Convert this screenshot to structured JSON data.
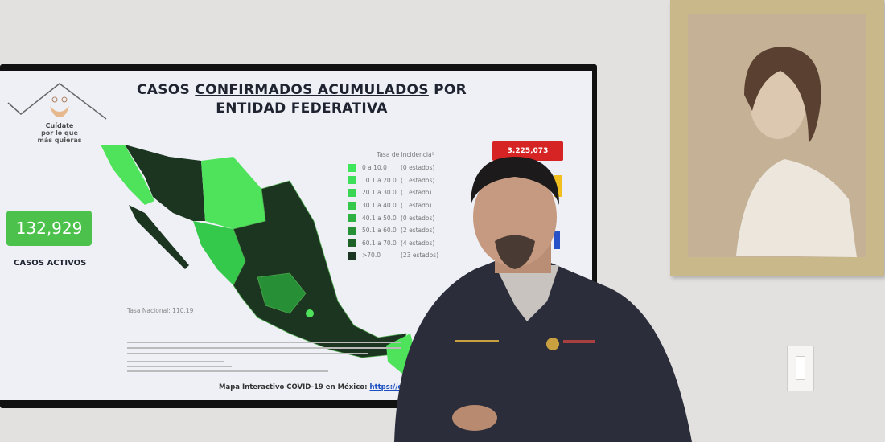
{
  "slide": {
    "title_line1_prefix": "CASOS ",
    "title_line1_underlined": "CONFIRMADOS ACUMULADOS",
    "title_line1_suffix": " POR",
    "title_line2": "ENTIDAD FEDERATIVA",
    "logo_text": [
      "Cuídate",
      "por lo que",
      "más quieras"
    ],
    "active_cases_value": "132,929",
    "active_cases_label": "CASOS ACTIVOS",
    "total_confirmed": "3.225,073",
    "national_rate": "Tasa Nacional: 110.19",
    "legend": {
      "title": "Tasa de incidencia¹",
      "items": [
        {
          "range": "0  a 10.0",
          "count": "(0 estados)",
          "color": "#3ee65a"
        },
        {
          "range": "10.1 a 20.0",
          "count": "(1 estados)",
          "color": "#3ee05a"
        },
        {
          "range": "20.1 a 30.0",
          "count": "(1 estado)",
          "color": "#3ad553"
        },
        {
          "range": "30.1 a 40.0",
          "count": "(1 estado)",
          "color": "#35c94c"
        },
        {
          "range": "40.1 a 50.0",
          "count": "(0 estados)",
          "color": "#2fb043"
        },
        {
          "range": "50.1 a 60.0",
          "count": "(2 estados)",
          "color": "#278f36"
        },
        {
          "range": "60.1 a 70.0",
          "count": "(4 estados)",
          "color": "#1e6228"
        },
        {
          "range": ">70.0",
          "count": "(23 estados)",
          "color": "#1c3520"
        }
      ]
    },
    "footer_label": "Mapa Interactivo COVID-19 en México:",
    "footer_link": "https://covid19..."
  },
  "colors": {
    "wall": "#e3e1df",
    "map_dark": "#1c3520",
    "map_light": "#4fe35c",
    "accent_red": "#d62424"
  }
}
